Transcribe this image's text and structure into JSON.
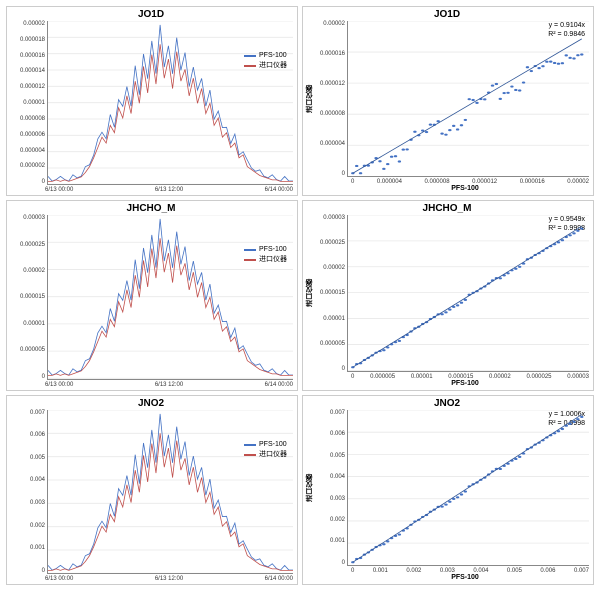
{
  "layout": {
    "rows": 3,
    "cols": 2,
    "background_color": "#ffffff",
    "panel_border": "#cccccc",
    "grid_color": "#e8e8e8"
  },
  "series_colors": {
    "pfs100": "#4472c4",
    "import": "#c0504d",
    "scatter": "#4472c4",
    "fitline": "#2e5597"
  },
  "panels": {
    "jo1d_ts": {
      "type": "line",
      "title": "JO1D",
      "ymax": 2e-05,
      "ytick_count": 11,
      "xticks": [
        "6/13 00:00",
        "6/13 12:00",
        "6/14 00:00"
      ],
      "legend": [
        {
          "color": "#4472c4",
          "label": "PFS-100"
        },
        {
          "color": "#c0504d",
          "label": "进口仪器"
        }
      ],
      "ytick_format": "dec"
    },
    "jo1d_sc": {
      "type": "scatter",
      "title": "JO1D",
      "xlabel": "PFS-100",
      "ylabel": "进口仪器",
      "xmax": 2e-05,
      "ymax": 2e-05,
      "tick_count": 6,
      "eq": "y = 0.9104x",
      "r2": "R² = 0.9846",
      "slope": 0.9104,
      "ytick_format": "dec"
    },
    "jhcho_ts": {
      "type": "line",
      "title": "JHCHO_M",
      "ymax": 3e-05,
      "ytick_count": 7,
      "xticks": [
        "6/13 00:00",
        "6/13 12:00",
        "6/14 00:00"
      ],
      "legend": [
        {
          "color": "#4472c4",
          "label": "PFS-100"
        },
        {
          "color": "#c0504d",
          "label": "进口仪器"
        }
      ],
      "ytick_format": "dec"
    },
    "jhcho_sc": {
      "type": "scatter",
      "title": "JHCHO_M",
      "xlabel": "PFS-100",
      "ylabel": "进口仪器",
      "xmax": 3e-05,
      "ymax": 3e-05,
      "tick_count": 7,
      "eq": "y = 0.9549x",
      "r2": "R² = 0.9998",
      "slope": 0.9549,
      "ytick_format": "dec"
    },
    "jno2_ts": {
      "type": "line",
      "title": "JNO2",
      "ymax": 0.007,
      "ytick_count": 8,
      "xticks": [
        "6/13 00:00",
        "6/13 12:00",
        "6/14 00:00"
      ],
      "legend": [
        {
          "color": "#4472c4",
          "label": "PFS-100"
        },
        {
          "color": "#c0504d",
          "label": "进口仪器"
        }
      ],
      "ytick_format": "short"
    },
    "jno2_sc": {
      "type": "scatter",
      "title": "JNO2",
      "xlabel": "PFS-100",
      "ylabel": "进口仪器",
      "xmax": 0.007,
      "ymax": 0.007,
      "tick_count": 8,
      "eq": "y = 1.0006x",
      "r2": "R² = 0.9998",
      "slope": 1.0006,
      "ytick_format": "short"
    }
  },
  "diurnal_shape": [
    0.02,
    0.02,
    0.03,
    0.02,
    0.03,
    0.02,
    0.03,
    0.04,
    0.05,
    0.08,
    0.12,
    0.18,
    0.25,
    0.32,
    0.28,
    0.4,
    0.35,
    0.52,
    0.45,
    0.6,
    0.48,
    0.7,
    0.55,
    0.8,
    0.62,
    0.88,
    0.68,
    0.95,
    0.72,
    0.85,
    0.65,
    0.9,
    0.7,
    0.78,
    0.6,
    0.72,
    0.55,
    0.65,
    0.48,
    0.55,
    0.4,
    0.45,
    0.32,
    0.35,
    0.25,
    0.28,
    0.18,
    0.2,
    0.12,
    0.1,
    0.08,
    0.06,
    0.05,
    0.04,
    0.03,
    0.03,
    0.02,
    0.02,
    0.02,
    0.02
  ]
}
